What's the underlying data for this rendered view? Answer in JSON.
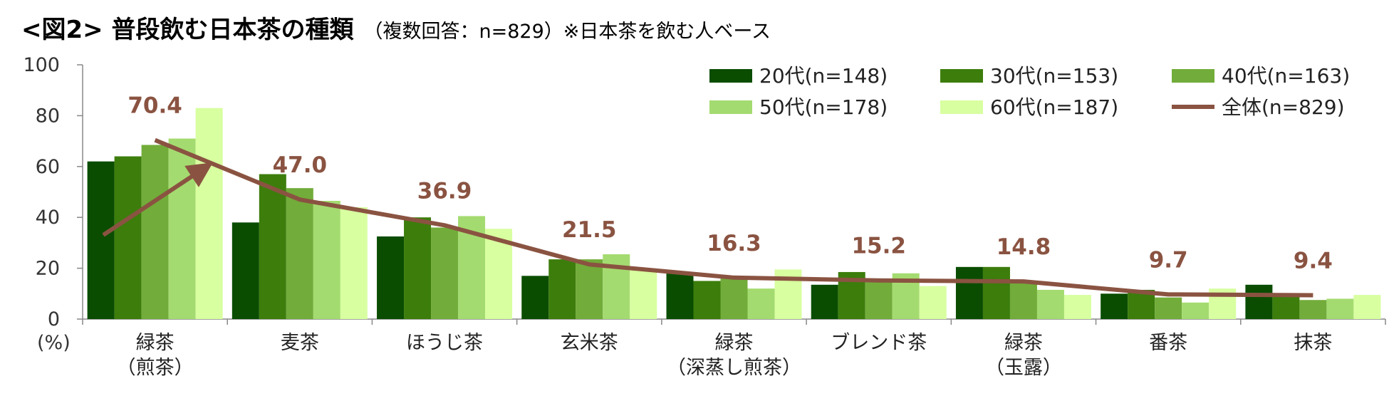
{
  "title": "<図2> 普段飲む日本茶の種類",
  "subtitle": "（複数回答：n=829）※日本茶を飲む人ベース",
  "chart_data": {
    "type": "bar",
    "categories": [
      [
        "緑茶",
        "（煎茶）"
      ],
      [
        "麦茶"
      ],
      [
        "ほうじ茶"
      ],
      [
        "玄米茶"
      ],
      [
        "緑茶",
        "（深蒸し煎茶）"
      ],
      [
        "ブレンド茶"
      ],
      [
        "緑茶",
        "（玉露）"
      ],
      [
        "番茶"
      ],
      [
        "抹茶"
      ]
    ],
    "series": [
      {
        "name": "20代(n=148)",
        "color": "#0a4d00",
        "values": [
          62,
          38,
          32.5,
          17,
          18,
          13.5,
          20.5,
          10,
          13.5
        ]
      },
      {
        "name": "30代(n=153)",
        "color": "#3c7d0c",
        "values": [
          64,
          57,
          40,
          23.5,
          15,
          18.5,
          20.5,
          11.5,
          9
        ]
      },
      {
        "name": "40代(n=163)",
        "color": "#72ac3a",
        "values": [
          68.5,
          51.5,
          36,
          23.5,
          16.5,
          14.5,
          14.5,
          8.5,
          7.5
        ]
      },
      {
        "name": "50代(n=178)",
        "color": "#a4db70",
        "values": [
          71,
          46.5,
          40.5,
          25.5,
          12,
          18,
          11.5,
          6.5,
          8
        ]
      },
      {
        "name": "60代(n=187)",
        "color": "#d8ffa0",
        "values": [
          83,
          44,
          35.5,
          19.5,
          19.5,
          13,
          9.5,
          12,
          9.5
        ]
      }
    ],
    "total": {
      "name": "全体(n=829)",
      "color": "#8a5341",
      "values": [
        70.4,
        47.0,
        36.9,
        21.5,
        16.3,
        15.2,
        14.8,
        9.7,
        9.4
      ]
    },
    "total_labels": [
      "70.4",
      "47.0",
      "36.9",
      "21.5",
      "16.3",
      "15.2",
      "14.8",
      "9.7",
      "9.4"
    ],
    "ylim": [
      0,
      100
    ],
    "yticks": [
      "0",
      "20",
      "40",
      "60",
      "80",
      "100"
    ],
    "ylabel": "(%)",
    "grid": false,
    "legend_position": "top-right"
  }
}
